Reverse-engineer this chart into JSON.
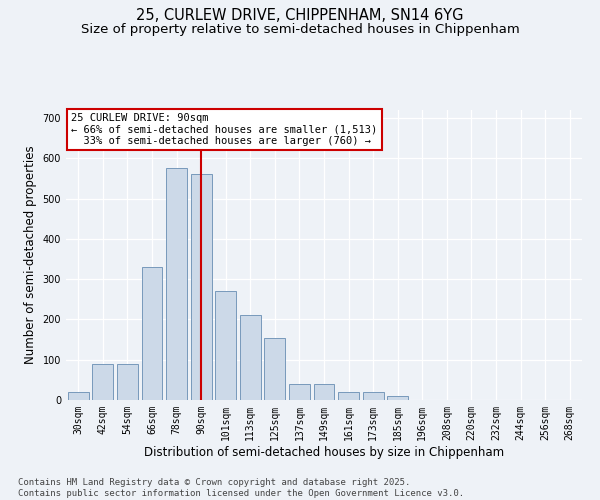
{
  "title_line1": "25, CURLEW DRIVE, CHIPPENHAM, SN14 6YG",
  "title_line2": "Size of property relative to semi-detached houses in Chippenham",
  "xlabel": "Distribution of semi-detached houses by size in Chippenham",
  "ylabel": "Number of semi-detached properties",
  "categories": [
    "30sqm",
    "42sqm",
    "54sqm",
    "66sqm",
    "78sqm",
    "90sqm",
    "101sqm",
    "113sqm",
    "125sqm",
    "137sqm",
    "149sqm",
    "161sqm",
    "173sqm",
    "185sqm",
    "196sqm",
    "208sqm",
    "220sqm",
    "232sqm",
    "244sqm",
    "256sqm",
    "268sqm"
  ],
  "values": [
    20,
    90,
    90,
    330,
    575,
    560,
    270,
    210,
    155,
    40,
    40,
    20,
    20,
    10,
    0,
    0,
    0,
    0,
    0,
    0,
    0
  ],
  "bar_color": "#ccd9e8",
  "bar_edge_color": "#7799bb",
  "vline_x_idx": 5,
  "vline_color": "#cc0000",
  "annotation_line1": "25 CURLEW DRIVE: 90sqm",
  "annotation_line2": "← 66% of semi-detached houses are smaller (1,513)",
  "annotation_line3": "  33% of semi-detached houses are larger (760) →",
  "annotation_box_color": "#cc0000",
  "ylim": [
    0,
    720
  ],
  "yticks": [
    0,
    100,
    200,
    300,
    400,
    500,
    600,
    700
  ],
  "bg_color": "#eef2f7",
  "footer_text": "Contains HM Land Registry data © Crown copyright and database right 2025.\nContains public sector information licensed under the Open Government Licence v3.0.",
  "title_fontsize": 10.5,
  "subtitle_fontsize": 9.5,
  "axis_label_fontsize": 8.5,
  "tick_fontsize": 7,
  "annot_fontsize": 7.5,
  "footer_fontsize": 6.5
}
